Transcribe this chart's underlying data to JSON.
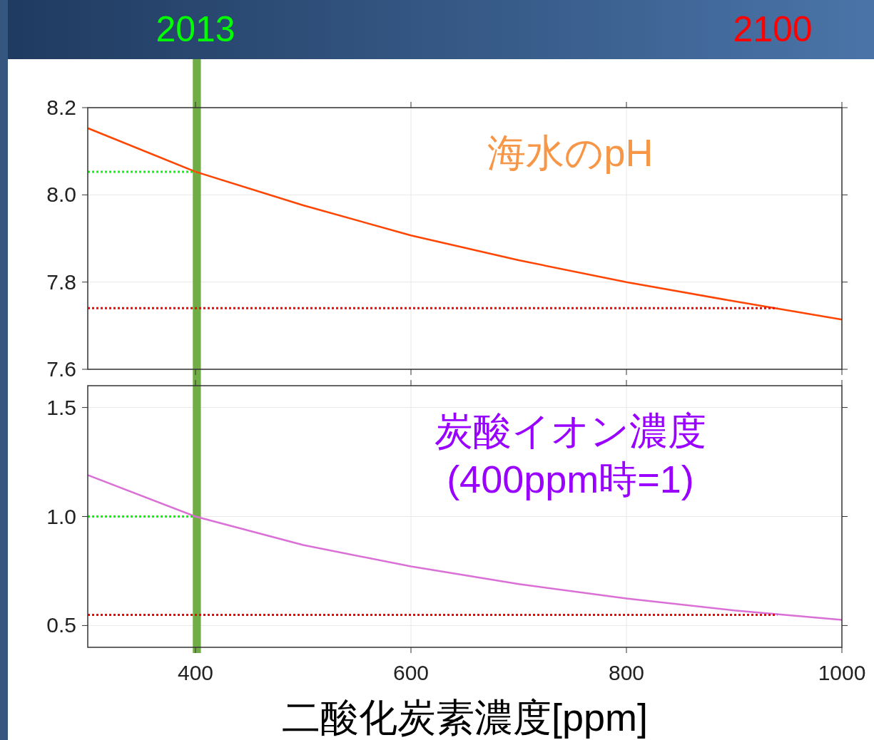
{
  "chart_data": [
    {
      "type": "line",
      "xlim": [
        300,
        1000
      ],
      "xticks": [
        400,
        600,
        800,
        1000
      ],
      "ylim": [
        7.6,
        8.2
      ],
      "yticks": [
        7.6,
        7.8,
        {
          "value": 8,
          "label": "8.0"
        },
        8.2
      ],
      "tick_labels": "y",
      "grid": true,
      "series": [
        {
          "color": "#ff4500",
          "x": [
            300,
            400,
            500,
            600,
            700,
            800,
            900,
            1000
          ],
          "values": [
            8.153,
            8.053,
            7.976,
            7.907,
            7.85,
            7.8,
            7.756,
            7.714
          ]
        },
        {
          "color": "#00ff00",
          "line_style": "dotted",
          "x": [
            300,
            400
          ],
          "values": [
            8.053,
            8.053
          ]
        },
        {
          "color": "#ff0000",
          "line_style": "dotted",
          "x": [
            300,
            940
          ],
          "values": [
            7.74,
            7.74
          ]
        }
      ],
      "bands": [
        {
          "axis": "x",
          "from": 397.5,
          "to": 405,
          "color": "#70ad47"
        }
      ],
      "annotations": [
        "海水のpH",
        "2013",
        "2100"
      ]
    },
    {
      "type": "line",
      "xlim": [
        300,
        1000
      ],
      "xticks": [
        400,
        600,
        800,
        1000
      ],
      "ylim": [
        0.4,
        1.6
      ],
      "yticks": [
        0.5,
        {
          "value": 1,
          "label": "1.0"
        },
        1.5
      ],
      "grid": true,
      "xlabel": "二酸化炭素濃度[ppm]",
      "series": [
        {
          "color": "#da70d6",
          "x": [
            300,
            400,
            500,
            600,
            700,
            800,
            900,
            1000
          ],
          "values": [
            1.19,
            1.0,
            0.869,
            0.771,
            0.69,
            0.624,
            0.569,
            0.526
          ]
        },
        {
          "color": "#00ff00",
          "line_style": "dotted",
          "x": [
            300,
            400
          ],
          "values": [
            1.0,
            1.0
          ]
        },
        {
          "color": "#ff0000",
          "line_style": "dotted",
          "x": [
            300,
            940
          ],
          "values": [
            0.549,
            0.549
          ]
        }
      ],
      "bands": [
        {
          "axis": "x",
          "from": 397.5,
          "to": 405,
          "color": "#70ad47"
        }
      ],
      "annotations": [
        "炭酸イオン濃度\n(400ppm時=1)"
      ]
    }
  ]
}
